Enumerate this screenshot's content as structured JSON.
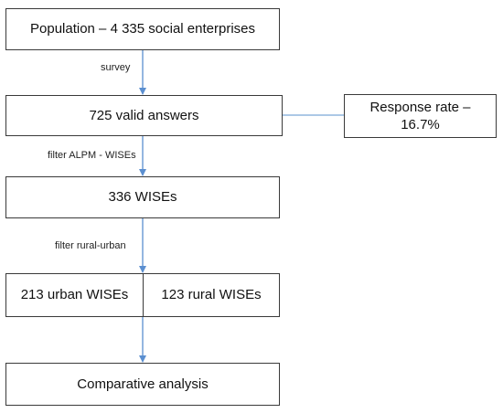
{
  "nodes": {
    "population": "Population – 4 335 social enterprises",
    "valid_answers": "725 valid answers",
    "response_rate": "Response rate – 16.7%",
    "wises": "336 WISEs",
    "urban": "213 urban WISEs",
    "rural": "123 rural WISEs",
    "comparative": "Comparative analysis"
  },
  "edges": {
    "survey": "survey",
    "filter_alpm": "filter ALPM - WISEs",
    "filter_rural_urban": "filter rural-urban"
  },
  "colors": {
    "arrow": "#5b8fd0",
    "connector": "#7aa6d8",
    "border": "#3a3a3a"
  }
}
